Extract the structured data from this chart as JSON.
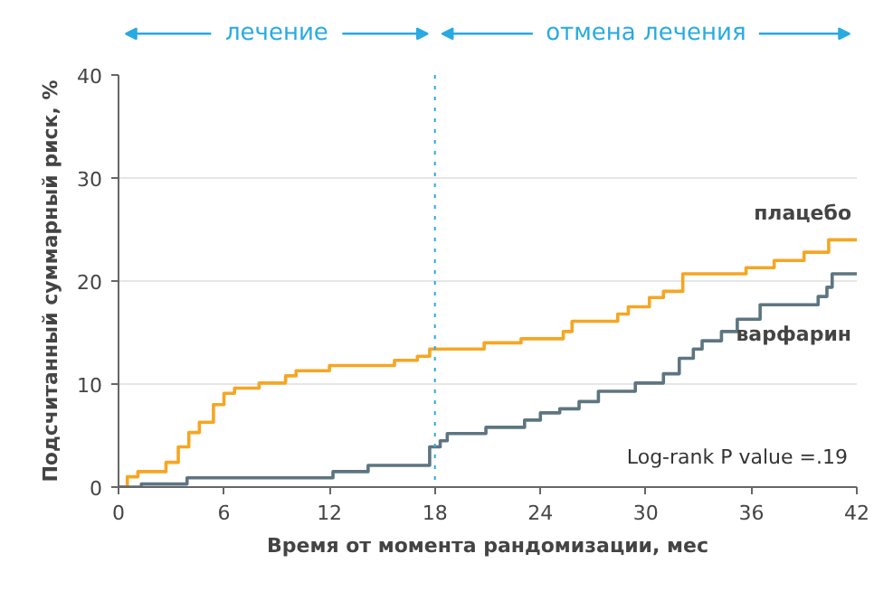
{
  "chart_data": {
    "type": "step",
    "xlabel": "Время от момента рандомизации, мес",
    "ylabel": "Подсчитанный суммарный риск, %",
    "xlim": [
      0,
      42
    ],
    "ylim": [
      0,
      40
    ],
    "xticks": [
      0,
      6,
      12,
      18,
      24,
      30,
      36,
      42
    ],
    "yticks": [
      0,
      10,
      20,
      30,
      40
    ],
    "grid": "y",
    "series": [
      {
        "name": "плацебо",
        "color": "#f5a623",
        "x": [
          0,
          0.5,
          1.1,
          2.7,
          3.4,
          4.0,
          4.6,
          5.4,
          6.0,
          6.6,
          8.0,
          9.5,
          10.1,
          12.0,
          15.7,
          17.0,
          17.7,
          20.8,
          22.9,
          25.3,
          25.8,
          28.4,
          29.0,
          30.2,
          31.0,
          32.1,
          35.7,
          37.3,
          39.0,
          40.4,
          42
        ],
        "values": [
          0,
          1.0,
          1.5,
          2.4,
          3.9,
          5.3,
          6.3,
          8.0,
          9.1,
          9.6,
          10.1,
          10.8,
          11.3,
          11.8,
          12.3,
          12.7,
          13.4,
          14.0,
          14.4,
          15.1,
          16.1,
          16.8,
          17.5,
          18.4,
          19.0,
          20.7,
          21.3,
          22.0,
          22.8,
          24.0,
          24.0
        ]
      },
      {
        "name": "варфарин",
        "color": "#5d7580",
        "x": [
          0,
          1.3,
          3.9,
          12.2,
          14.2,
          17.7,
          18.3,
          18.7,
          20.9,
          23.1,
          24.0,
          25.1,
          26.2,
          27.3,
          29.4,
          31.0,
          31.9,
          32.7,
          33.2,
          34.3,
          35.2,
          36.5,
          39.8,
          40.3,
          40.6,
          42
        ],
        "values": [
          0,
          0.3,
          0.9,
          1.5,
          2.1,
          3.9,
          4.5,
          5.2,
          5.8,
          6.5,
          7.2,
          7.6,
          8.3,
          9.3,
          10.1,
          11.0,
          12.5,
          13.4,
          14.2,
          15.1,
          16.3,
          17.7,
          18.5,
          19.4,
          20.7,
          20.7
        ]
      }
    ],
    "ref_lines": [
      {
        "axis": "x",
        "value": 18,
        "color": "#29aae1",
        "line_style": "dotted"
      }
    ],
    "annotations": [
      "лечение",
      "отмена лечения",
      "Log-rank P value =.19"
    ]
  }
}
